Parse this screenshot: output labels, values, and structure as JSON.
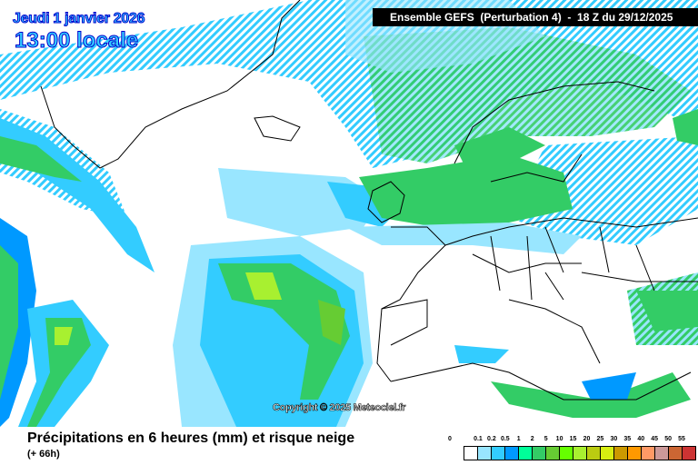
{
  "map": {
    "date": "Jeudi 1 janvier 2026",
    "time": "13:00 locale",
    "header": "Ensemble GEFS  (Perturbation 4)  -  18 Z du 29/12/2025",
    "copyright": "Copyright © 2025 Meteociel.fr",
    "footer_title": "Précipitations en 6 heures (mm) et risque neige",
    "footer_sub": "(+ 66h)"
  },
  "legend": {
    "labels": [
      "0",
      "0.1",
      "0.2",
      "0.5",
      "1",
      "2",
      "5",
      "10",
      "15",
      "20",
      "25",
      "30",
      "35",
      "40",
      "45",
      "50",
      "55"
    ],
    "colors": [
      "#ffffff",
      "#99e6ff",
      "#33ccff",
      "#0099ff",
      "#00ff99",
      "#33cc66",
      "#66cc33",
      "#66ff00",
      "#a8f030",
      "#bbcc11",
      "#d8ee11",
      "#cc9900",
      "#ff9900",
      "#ff9966",
      "#cc9999",
      "#cc6633",
      "#cc3333"
    ],
    "snow_risk_pattern": "diagonal-hatching"
  }
}
